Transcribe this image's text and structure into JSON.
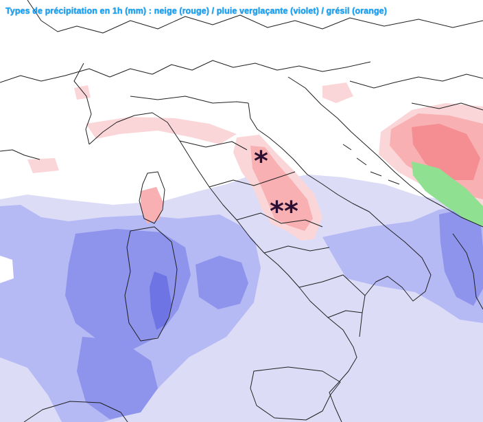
{
  "title": "Types de précipitation en 1h (mm) : neige (rouge) / pluie verglaçante (violet) / grésil (orange)",
  "snow_marker_symbol": "*",
  "legend_colors": {
    "rain_light": "#dcdcf7",
    "rain_moderate": "#b5b9f4",
    "rain_heavy": "#8e93ec",
    "rain_very_heavy": "#6e74e4",
    "snow_light": "#fbd6d8",
    "snow_moderate": "#f8b0b2",
    "snow_heavy": "#f48e92",
    "mixed": "#8fe090",
    "border": "#1f1f1f",
    "title": "#12a8ff"
  }
}
